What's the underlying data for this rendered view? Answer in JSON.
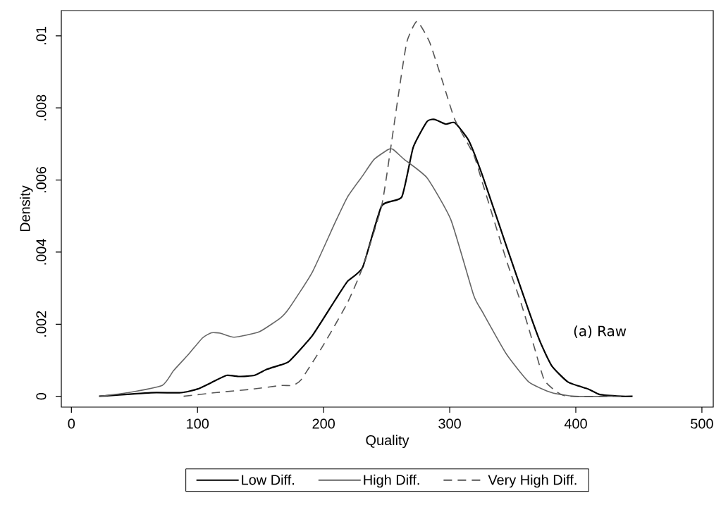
{
  "chart_data": {
    "type": "line",
    "xlabel": "Quality",
    "ylabel": "Density",
    "xlim": [
      -8,
      509
    ],
    "xticks": [
      0,
      100,
      200,
      300,
      400,
      500
    ],
    "ylim": [
      -0.0003,
      0.0107
    ],
    "yticks": [
      {
        "value": 0,
        "label": "0"
      },
      {
        "value": 0.002,
        "label": ".002"
      },
      {
        "value": 0.004,
        "label": ".004"
      },
      {
        "value": 0.006,
        "label": ".006"
      },
      {
        "value": 0.008,
        "label": ".008"
      },
      {
        "value": 0.01,
        "label": ".01"
      }
    ],
    "grid": false,
    "legend": "bottom",
    "marker": "none",
    "annotations": [
      "(a) Raw"
    ],
    "series": [
      {
        "name": "Low Diff.",
        "color": "#000000",
        "line_style": "solid",
        "x": [
          22,
          63,
          87,
          100,
          111,
          123,
          133,
          145,
          155,
          166,
          173,
          191,
          209,
          219,
          231,
          246,
          262,
          271,
          282,
          288,
          297,
          304,
          315,
          326,
          345,
          363,
          372,
          381,
          394,
          410,
          419,
          436,
          445
        ],
        "values": [
          0,
          0.0001,
          0.0001,
          0.0002,
          0.00038,
          0.00058,
          0.00055,
          0.00058,
          0.00075,
          0.00087,
          0.00098,
          0.00168,
          0.00266,
          0.00319,
          0.00358,
          0.00528,
          0.00553,
          0.0069,
          0.00762,
          0.00768,
          0.00755,
          0.00759,
          0.0071,
          0.00612,
          0.00416,
          0.00234,
          0.00149,
          0.00084,
          0.00039,
          0.0002,
          5e-05,
          0,
          0
        ]
      },
      {
        "name": "High Diff.",
        "color": "#666666",
        "line_style": "solid",
        "x": [
          22,
          45,
          72,
          81,
          93,
          104,
          111,
          118,
          129,
          149,
          166,
          173,
          191,
          209,
          219,
          231,
          240,
          251,
          255,
          264,
          282,
          301,
          319,
          326,
          345,
          363,
          381,
          399,
          430
        ],
        "values": [
          0,
          0.0001,
          0.0003,
          0.00071,
          0.00117,
          0.00162,
          0.00176,
          0.00175,
          0.00164,
          0.00179,
          0.00218,
          0.00246,
          0.00344,
          0.00481,
          0.00553,
          0.00612,
          0.00657,
          0.00684,
          0.00685,
          0.00657,
          0.00606,
          0.00489,
          0.0028,
          0.00234,
          0.00117,
          0.00039,
          0.0001,
          0,
          0
        ]
      },
      {
        "name": "Very High Diff.",
        "color": "#555555",
        "line_style": "dashed",
        "x": [
          89,
          114,
          144,
          166,
          175,
          182,
          200,
          219,
          231,
          246,
          253,
          260,
          266,
          274,
          284,
          295,
          304,
          319,
          326,
          345,
          357,
          367,
          375,
          385,
          394,
          440
        ],
        "values": [
          0,
          0.0001,
          0.0002,
          0.0003,
          0.0003,
          0.00045,
          0.00143,
          0.0026,
          0.00358,
          0.00528,
          0.00684,
          0.00852,
          0.00983,
          0.0104,
          0.00983,
          0.00866,
          0.00768,
          0.0067,
          0.00592,
          0.00377,
          0.00254,
          0.00137,
          0.00045,
          0.00012,
          0,
          0
        ]
      }
    ]
  }
}
